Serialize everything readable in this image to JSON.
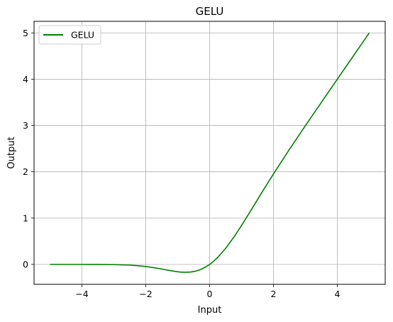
{
  "chart_data": {
    "type": "line",
    "title": "GELU",
    "xlabel": "Input",
    "ylabel": "Output",
    "xlim": [
      -5.5,
      5.5
    ],
    "ylim": [
      -0.43,
      5.25
    ],
    "xticks": [
      -4,
      -2,
      0,
      2,
      4
    ],
    "xtick_labels": [
      "−4",
      "−2",
      "0",
      "2",
      "4"
    ],
    "yticks": [
      0,
      1,
      2,
      3,
      4,
      5
    ],
    "ytick_labels": [
      "0",
      "1",
      "2",
      "3",
      "4",
      "5"
    ],
    "grid": true,
    "legend_position": "top-left",
    "series": [
      {
        "name": "GELU",
        "color": "#008000",
        "x": [
          -5,
          -4.5,
          -4,
          -3.5,
          -3,
          -2.75,
          -2.5,
          -2.25,
          -2,
          -1.75,
          -1.5,
          -1.25,
          -1,
          -0.9,
          -0.75,
          -0.6,
          -0.5,
          -0.4,
          -0.25,
          -0.1,
          0,
          0.1,
          0.25,
          0.5,
          0.75,
          1,
          1.25,
          1.5,
          1.75,
          2,
          2.5,
          3,
          3.5,
          4,
          4.5,
          5
        ],
        "y": [
          0,
          0,
          -0.0001,
          -0.0008,
          -0.004,
          -0.0082,
          -0.0155,
          -0.0274,
          -0.0455,
          -0.0702,
          -0.1002,
          -0.132,
          -0.1587,
          -0.1657,
          -0.1699,
          -0.1645,
          -0.1543,
          -0.1379,
          -0.1003,
          -0.046,
          0,
          0.054,
          0.1497,
          0.3457,
          0.5801,
          0.8413,
          1.118,
          1.3998,
          1.6798,
          1.9545,
          2.4845,
          2.996,
          3.4992,
          3.9999,
          4.5,
          5.0
        ]
      }
    ]
  }
}
